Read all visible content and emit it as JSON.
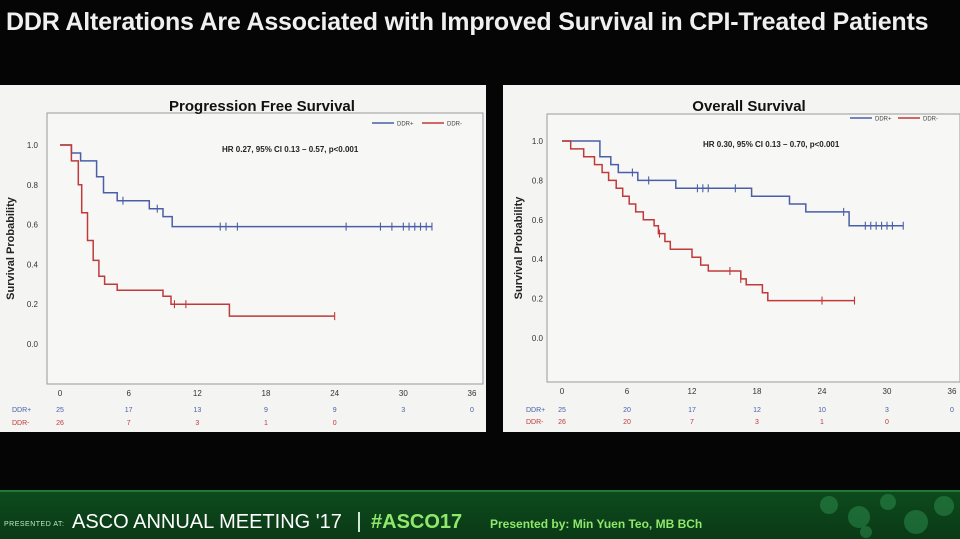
{
  "slide": {
    "title": "DDR Alterations Are Associated with Improved Survival in CPI-Treated Patients"
  },
  "footer": {
    "presented_at": "PRESENTED AT:",
    "meeting": "ASCO ANNUAL MEETING '17",
    "hashtag": "#ASCO17",
    "presenter": "Presented by: Min Yuen Teo, MB BCh"
  },
  "colors": {
    "ddr_pos": "#4a5fa8",
    "ddr_neg": "#c03a3a",
    "background": "#050505",
    "panel": "#f4f4f2"
  },
  "chart_data": [
    {
      "type": "line",
      "subtype": "kaplan-meier",
      "title": "Progression Free Survival",
      "ylabel": "Survival Probability",
      "xlabel": "",
      "annotation": "HR 0.27, 95% CI 0.13 – 0.57, p<0.001",
      "xlim": [
        0,
        36
      ],
      "ylim": [
        0,
        1
      ],
      "x_ticks": [
        0,
        6,
        12,
        18,
        24,
        30,
        36
      ],
      "y_ticks": [
        "0.0",
        "0.2",
        "0.4",
        "0.6",
        "0.8",
        "1.0"
      ],
      "legend_position": "top-right",
      "series": [
        {
          "name": "DDR+",
          "color": "#4a5fa8",
          "steps": [
            [
              0,
              1.0
            ],
            [
              1,
              0.96
            ],
            [
              1.8,
              0.92
            ],
            [
              3.2,
              0.84
            ],
            [
              3.8,
              0.76
            ],
            [
              5,
              0.72
            ],
            [
              7.8,
              0.68
            ],
            [
              9,
              0.64
            ],
            [
              9.8,
              0.59
            ],
            [
              32.5,
              0.59
            ]
          ],
          "censors": [
            5.5,
            8.5,
            14,
            14.5,
            15.5,
            25,
            28,
            29,
            30,
            30.5,
            31,
            31.5,
            32,
            32.5
          ],
          "at_risk": [
            "25",
            "17",
            "13",
            "9",
            "9",
            "3",
            "0"
          ]
        },
        {
          "name": "DDR-",
          "color": "#c03a3a",
          "steps": [
            [
              0,
              1.0
            ],
            [
              1,
              0.92
            ],
            [
              1.6,
              0.8
            ],
            [
              1.9,
              0.66
            ],
            [
              2.4,
              0.52
            ],
            [
              2.9,
              0.42
            ],
            [
              3.4,
              0.34
            ],
            [
              3.9,
              0.3
            ],
            [
              5,
              0.27
            ],
            [
              9,
              0.24
            ],
            [
              9.7,
              0.2
            ],
            [
              14.8,
              0.14
            ],
            [
              24,
              0.14
            ]
          ],
          "censors": [
            10,
            11,
            24
          ],
          "at_risk": [
            "26",
            "7",
            "3",
            "1",
            "0",
            "",
            ""
          ]
        }
      ]
    },
    {
      "type": "line",
      "subtype": "kaplan-meier",
      "title": "Overall Survival",
      "ylabel": "Survival Probability",
      "xlabel": "",
      "annotation": "HR 0.30, 95% CI 0.13 – 0.70, p<0.001",
      "xlim": [
        0,
        36
      ],
      "ylim": [
        0,
        1
      ],
      "x_ticks": [
        0,
        6,
        12,
        18,
        24,
        30,
        36
      ],
      "y_ticks": [
        "0.0",
        "0.2",
        "0.4",
        "0.6",
        "0.8",
        "1.0"
      ],
      "legend_position": "top-right",
      "series": [
        {
          "name": "DDR+",
          "color": "#4a5fa8",
          "steps": [
            [
              0,
              1.0
            ],
            [
              3.5,
              0.92
            ],
            [
              4.5,
              0.88
            ],
            [
              5.2,
              0.84
            ],
            [
              7,
              0.8
            ],
            [
              10.5,
              0.76
            ],
            [
              17.5,
              0.72
            ],
            [
              21,
              0.68
            ],
            [
              22.5,
              0.64
            ],
            [
              26.5,
              0.57
            ],
            [
              31.5,
              0.57
            ]
          ],
          "censors": [
            6.5,
            8,
            12.5,
            13,
            13.5,
            16,
            26,
            28,
            28.5,
            29,
            29.5,
            30,
            30.5,
            31.5
          ],
          "at_risk": [
            "25",
            "20",
            "17",
            "12",
            "10",
            "3",
            "0"
          ]
        },
        {
          "name": "DDR-",
          "color": "#c03a3a",
          "steps": [
            [
              0,
              1.0
            ],
            [
              0.8,
              0.96
            ],
            [
              2,
              0.92
            ],
            [
              3,
              0.88
            ],
            [
              3.7,
              0.84
            ],
            [
              4.3,
              0.8
            ],
            [
              5,
              0.76
            ],
            [
              5.6,
              0.72
            ],
            [
              6.2,
              0.68
            ],
            [
              6.8,
              0.64
            ],
            [
              7.5,
              0.6
            ],
            [
              8.5,
              0.57
            ],
            [
              8.9,
              0.53
            ],
            [
              9.5,
              0.49
            ],
            [
              10,
              0.45
            ],
            [
              12,
              0.41
            ],
            [
              12.8,
              0.37
            ],
            [
              13.5,
              0.34
            ],
            [
              16.5,
              0.3
            ],
            [
              17,
              0.27
            ],
            [
              18.5,
              0.23
            ],
            [
              19,
              0.19
            ],
            [
              27,
              0.19
            ]
          ],
          "censors": [
            9,
            15.5,
            16.5,
            24,
            27
          ],
          "at_risk": [
            "26",
            "20",
            "7",
            "3",
            "1",
            "0",
            ""
          ]
        }
      ]
    }
  ]
}
